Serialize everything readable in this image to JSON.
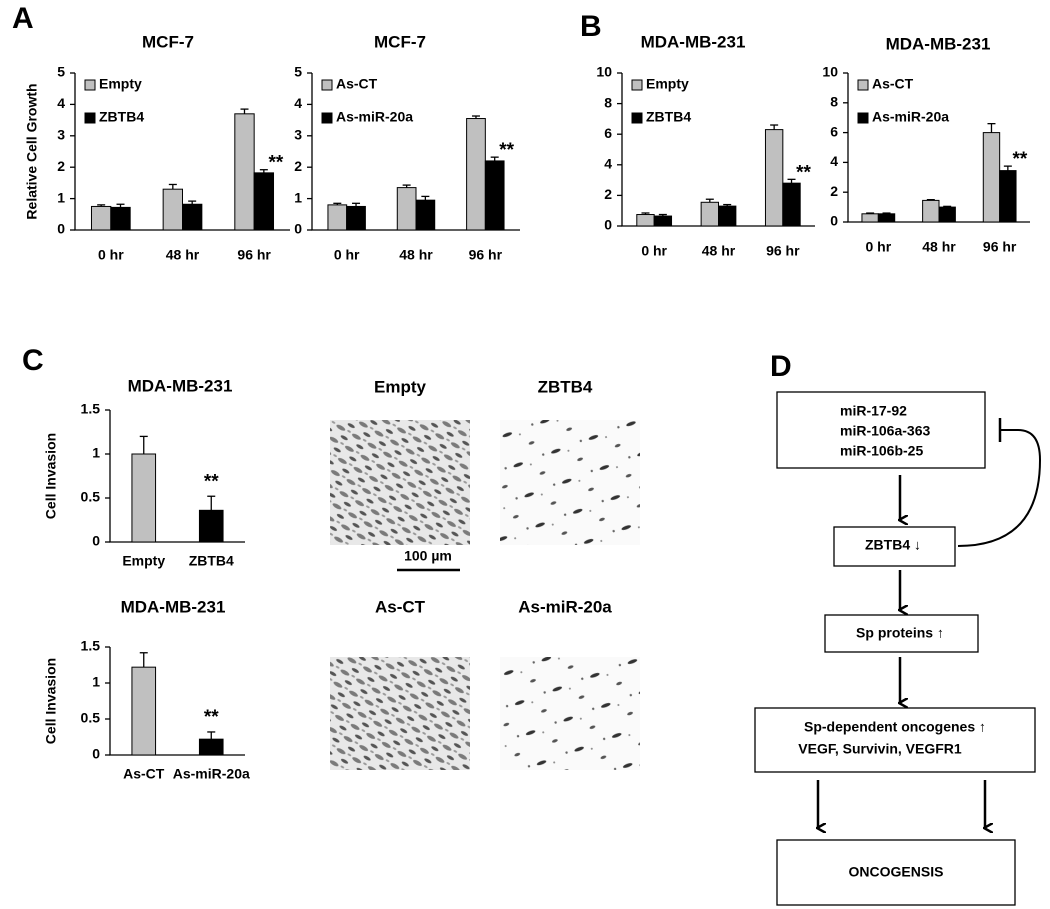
{
  "panel_labels": [
    "A",
    "B",
    "C",
    "D"
  ],
  "chart_data": [
    {
      "type": "bar",
      "title": "MCF-7",
      "y_label": "Relative Cell Growth",
      "categories": [
        "0 hr",
        "48 hr",
        "96 hr"
      ],
      "ylim": [
        0,
        5
      ],
      "yticks": [
        0,
        1,
        2,
        3,
        4,
        5
      ],
      "series": [
        {
          "name": "Empty",
          "color": "#c0c0c0",
          "values": [
            0.75,
            1.3,
            3.7
          ],
          "errors": [
            0.05,
            0.15,
            0.15
          ],
          "value_annotations": [
            null,
            null,
            null
          ]
        },
        {
          "name": "ZBTB4",
          "color": "#000000",
          "values": [
            0.72,
            0.82,
            1.82
          ],
          "errors": [
            0.1,
            0.1,
            0.1
          ],
          "value_annotations": [
            null,
            null,
            "**"
          ]
        }
      ]
    },
    {
      "type": "bar",
      "title": "MCF-7",
      "categories": [
        "0 hr",
        "48 hr",
        "96 hr"
      ],
      "ylim": [
        0,
        5
      ],
      "yticks": [
        0,
        1,
        2,
        3,
        4,
        5
      ],
      "series": [
        {
          "name": "As-CT",
          "color": "#c0c0c0",
          "values": [
            0.8,
            1.35,
            3.55
          ],
          "errors": [
            0.05,
            0.08,
            0.08
          ],
          "value_annotations": [
            null,
            null,
            null
          ]
        },
        {
          "name": "As-miR-20a",
          "color": "#000000",
          "values": [
            0.75,
            0.95,
            2.2
          ],
          "errors": [
            0.1,
            0.12,
            0.12
          ],
          "value_annotations": [
            null,
            null,
            "**"
          ]
        }
      ]
    },
    {
      "type": "bar",
      "title": "MDA-MB-231",
      "categories": [
        "0 hr",
        "48 hr",
        "96 hr"
      ],
      "ylim": [
        0,
        10
      ],
      "yticks": [
        0,
        2,
        4,
        6,
        8,
        10
      ],
      "series": [
        {
          "name": "Empty",
          "color": "#c0c0c0",
          "values": [
            0.75,
            1.55,
            6.3
          ],
          "errors": [
            0.1,
            0.2,
            0.3
          ],
          "value_annotations": [
            null,
            null,
            null
          ]
        },
        {
          "name": "ZBTB4",
          "color": "#000000",
          "values": [
            0.65,
            1.3,
            2.8
          ],
          "errors": [
            0.1,
            0.1,
            0.25
          ],
          "value_annotations": [
            null,
            null,
            "**"
          ]
        }
      ]
    },
    {
      "type": "bar",
      "title": "MDA-MB-231",
      "categories": [
        "0 hr",
        "48 hr",
        "96 hr"
      ],
      "ylim": [
        0,
        10
      ],
      "yticks": [
        0,
        2,
        4,
        6,
        8,
        10
      ],
      "series": [
        {
          "name": "As-CT",
          "color": "#c0c0c0",
          "values": [
            0.55,
            1.45,
            6.0
          ],
          "errors": [
            0.05,
            0.05,
            0.6
          ],
          "value_annotations": [
            null,
            null,
            null
          ]
        },
        {
          "name": "As-miR-20a",
          "color": "#000000",
          "values": [
            0.55,
            1.0,
            3.45
          ],
          "errors": [
            0.05,
            0.05,
            0.3
          ],
          "value_annotations": [
            null,
            null,
            "**"
          ]
        }
      ]
    },
    {
      "type": "bar",
      "title": "MDA-MB-231",
      "y_label": "Cell Invasion",
      "categories": [
        "Empty",
        "ZBTB4"
      ],
      "ylim": [
        0,
        1.5
      ],
      "yticks": [
        0,
        0.5,
        1,
        1.5
      ],
      "values": [
        1.0,
        0.36
      ],
      "errors": [
        0.2,
        0.16
      ],
      "colors": [
        "#c0c0c0",
        "#000000"
      ],
      "value_annotations": [
        null,
        "**"
      ]
    },
    {
      "type": "bar",
      "title": "MDA-MB-231",
      "y_label": "Cell Invasion",
      "categories": [
        "As-CT",
        "As-miR-20a"
      ],
      "ylim": [
        0,
        1.5
      ],
      "yticks": [
        0,
        0.5,
        1,
        1.5
      ],
      "values": [
        1.22,
        0.22
      ],
      "errors": [
        0.2,
        0.1
      ],
      "colors": [
        "#c0c0c0",
        "#000000"
      ],
      "value_annotations": [
        null,
        "**"
      ]
    }
  ],
  "micrographs": [
    "Empty",
    "ZBTB4",
    "As-CT",
    "As-miR-20a"
  ],
  "scale_bar": "100 µm",
  "diagram": {
    "nodes": [
      {
        "lines": [
          "miR-17-92",
          "miR-106a-363",
          "miR-106b-25"
        ]
      },
      {
        "lines": [
          "ZBTB4 ↓"
        ]
      },
      {
        "lines": [
          "Sp proteins ↑"
        ]
      },
      {
        "lines": [
          "Sp-dependent oncogenes ↑",
          "VEGF, Survivin, VEGFR1"
        ]
      },
      {
        "lines": [
          "ONCOGENSIS"
        ]
      }
    ]
  }
}
